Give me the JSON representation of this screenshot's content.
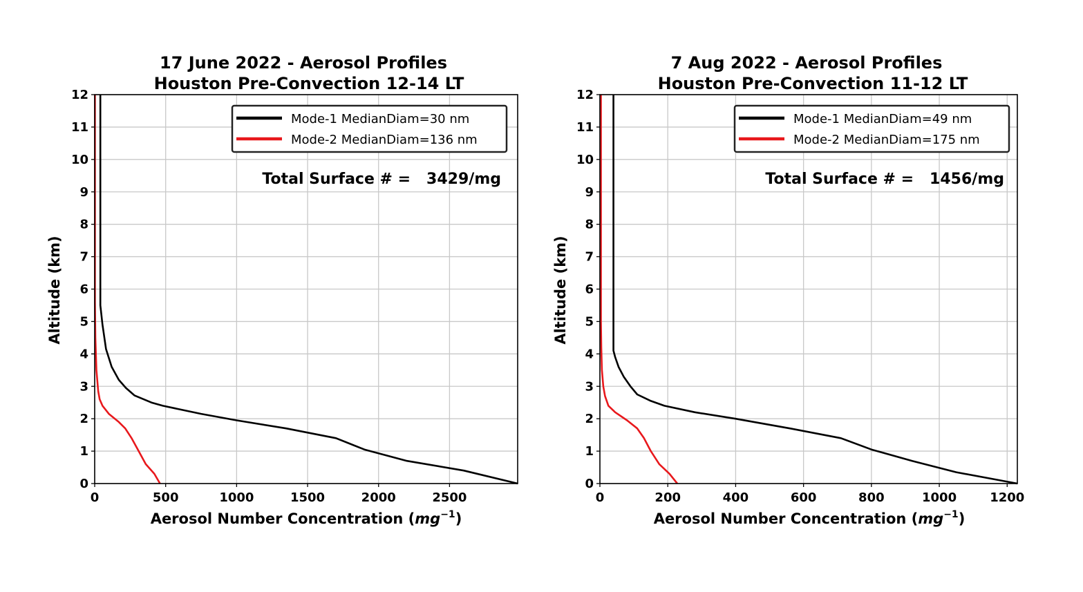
{
  "chart_data": [
    {
      "type": "line",
      "title": "17 June 2022 - Aerosol Profiles",
      "subtitle": "Houston Pre-Convection 12-14 LT",
      "xlabel": "Aerosol Number Concentration (",
      "xlabel_unit": "mg",
      "xlabel_exp": "−1",
      "xlabel_close": ")",
      "ylabel": "Altitude (km)",
      "xlim": [
        0,
        2980
      ],
      "ylim": [
        0,
        12
      ],
      "xticks": [
        0,
        500,
        1000,
        1500,
        2000,
        2500
      ],
      "yticks": [
        0,
        1,
        2,
        3,
        4,
        5,
        6,
        7,
        8,
        9,
        10,
        11,
        12
      ],
      "grid": true,
      "legend_position": "top-right",
      "annotation": "Total Surface # =   3429/mg",
      "series": [
        {
          "name": "Mode-1 MedianDiam=30 nm",
          "color": "#000000",
          "x": [
            2980,
            2600,
            2200,
            1900,
            1700,
            1350,
            1000,
            750,
            480,
            400,
            280,
            220,
            170,
            120,
            80,
            55,
            40,
            40
          ],
          "y": [
            0,
            0.4,
            0.7,
            1.05,
            1.4,
            1.7,
            1.95,
            2.15,
            2.4,
            2.5,
            2.72,
            2.95,
            3.2,
            3.6,
            4.15,
            4.9,
            5.5,
            12
          ]
        },
        {
          "name": "Mode-2 MedianDiam=136 nm",
          "color": "#e8181c",
          "x": [
            460,
            420,
            360,
            310,
            260,
            215,
            170,
            100,
            55,
            35,
            25,
            12,
            5,
            2,
            2
          ],
          "y": [
            0,
            0.3,
            0.6,
            1.0,
            1.4,
            1.7,
            1.9,
            2.15,
            2.4,
            2.6,
            2.85,
            3.5,
            4.5,
            5.6,
            12
          ]
        }
      ]
    },
    {
      "type": "line",
      "title": "7 Aug 2022 - Aerosol Profiles",
      "subtitle": "Houston Pre-Convection 11-12 LT",
      "xlabel": "Aerosol Number Concentration (",
      "xlabel_unit": "mg",
      "xlabel_exp": "−1",
      "xlabel_close": ")",
      "ylabel": "Altitude (km)",
      "xlim": [
        0,
        1230
      ],
      "ylim": [
        0,
        12
      ],
      "xticks": [
        0,
        200,
        400,
        600,
        800,
        1000,
        1200
      ],
      "yticks": [
        0,
        1,
        2,
        3,
        4,
        5,
        6,
        7,
        8,
        9,
        10,
        11,
        12
      ],
      "grid": true,
      "legend_position": "top-right",
      "annotation": "Total Surface # =   1456/mg",
      "series": [
        {
          "name": "Mode-1 MedianDiam=49 nm",
          "color": "#000000",
          "x": [
            1230,
            1050,
            920,
            800,
            710,
            560,
            400,
            280,
            190,
            150,
            110,
            90,
            70,
            55,
            45,
            40,
            40
          ],
          "y": [
            0,
            0.35,
            0.7,
            1.05,
            1.4,
            1.7,
            2.0,
            2.2,
            2.4,
            2.55,
            2.75,
            3.0,
            3.3,
            3.6,
            3.9,
            4.1,
            12
          ]
        },
        {
          "name": "Mode-2 MedianDiam=175 nm",
          "color": "#e8181c",
          "x": [
            228,
            205,
            175,
            150,
            130,
            110,
            80,
            45,
            25,
            15,
            10,
            6,
            4,
            3,
            3
          ],
          "y": [
            0,
            0.3,
            0.6,
            1.0,
            1.4,
            1.7,
            1.95,
            2.2,
            2.4,
            2.7,
            3.0,
            3.5,
            4.2,
            5.0,
            12
          ]
        }
      ]
    }
  ]
}
